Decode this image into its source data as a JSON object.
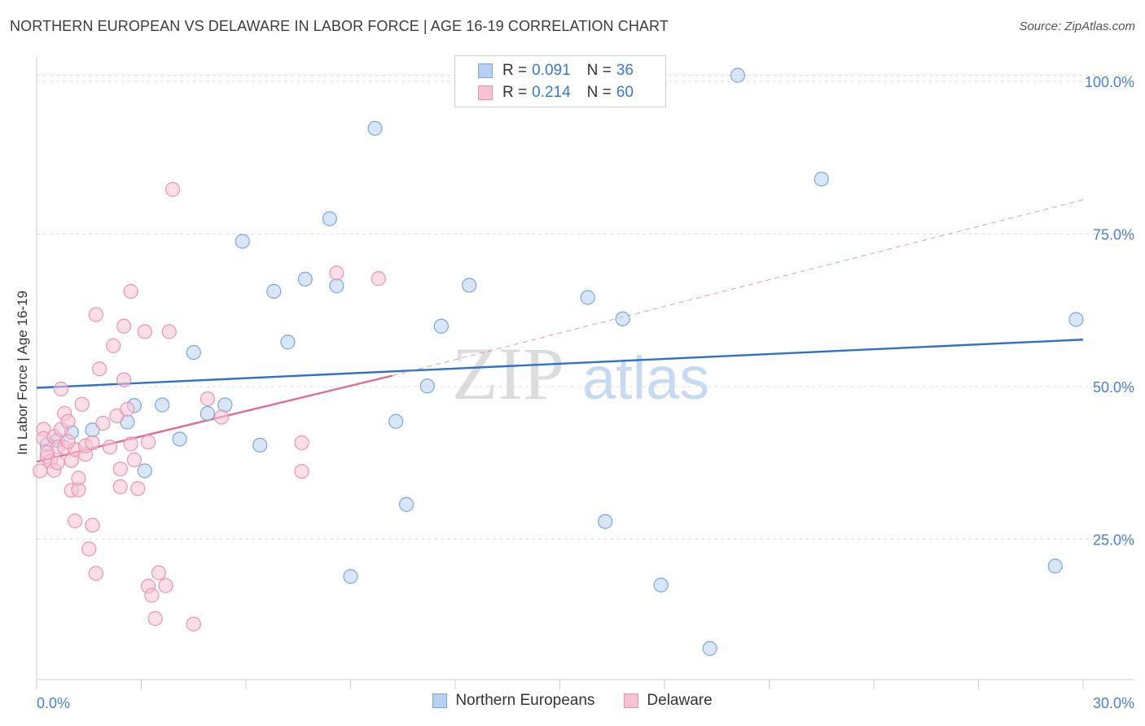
{
  "title": "NORTHERN EUROPEAN VS DELAWARE IN LABOR FORCE | AGE 16-19 CORRELATION CHART",
  "source": "Source: ZipAtlas.com",
  "watermark": {
    "zip": "ZIP",
    "atlas": "atlas"
  },
  "legend": {
    "rows": [
      {
        "r_label": "R =",
        "r_value": "0.091",
        "n_label": "N =",
        "n_value": "36"
      },
      {
        "r_label": "R =",
        "r_value": "0.214",
        "n_label": "N =",
        "n_value": "60"
      }
    ]
  },
  "bottom_legend": [
    {
      "label": "Northern Europeans"
    },
    {
      "label": "Delaware"
    }
  ],
  "colors": {
    "blue_fill": "#b8d1f3",
    "blue_stroke": "#7aa5e0",
    "blue_line": "#2f6fd0",
    "pink_fill": "#f7c3d3",
    "pink_stroke": "#ea93b0",
    "pink_line": "#e06a96",
    "grid": "#dddddd",
    "tick_text": "#4a7fd0"
  },
  "chart_data": {
    "type": "scatter",
    "title": "NORTHERN EUROPEAN VS DELAWARE IN LABOR FORCE | AGE 16-19 CORRELATION CHART",
    "xlabel": "",
    "ylabel": "In Labor Force | Age 16-19",
    "xlim": [
      0,
      30
    ],
    "ylim": [
      2,
      104
    ],
    "x_tick_labels": [
      "0.0%",
      "30.0%"
    ],
    "y_ticks": [
      25,
      50,
      75,
      100
    ],
    "y_tick_labels": [
      "25.0%",
      "50.0%",
      "75.0%",
      "100.0%"
    ],
    "grid": true,
    "series": [
      {
        "name": "Northern Europeans",
        "r": 0.091,
        "n": 36,
        "points": [
          [
            0.6,
            41.2
          ],
          [
            1.0,
            42.5
          ],
          [
            1.6,
            42.9
          ],
          [
            2.8,
            46.9
          ],
          [
            2.6,
            44.2
          ],
          [
            3.1,
            36.2
          ],
          [
            3.6,
            47.0
          ],
          [
            4.1,
            41.4
          ],
          [
            4.5,
            55.6
          ],
          [
            4.9,
            45.6
          ],
          [
            5.4,
            47.0
          ],
          [
            5.9,
            73.8
          ],
          [
            6.4,
            40.4
          ],
          [
            6.8,
            65.6
          ],
          [
            7.2,
            57.3
          ],
          [
            7.7,
            67.6
          ],
          [
            8.4,
            77.5
          ],
          [
            8.6,
            66.5
          ],
          [
            9.0,
            18.9
          ],
          [
            9.7,
            92.3
          ],
          [
            10.3,
            44.3
          ],
          [
            10.6,
            30.7
          ],
          [
            11.2,
            50.1
          ],
          [
            11.6,
            59.9
          ],
          [
            12.4,
            66.6
          ],
          [
            14.1,
            101.0
          ],
          [
            15.8,
            64.6
          ],
          [
            16.3,
            27.9
          ],
          [
            16.8,
            61.1
          ],
          [
            17.9,
            17.5
          ],
          [
            19.3,
            7.1
          ],
          [
            20.1,
            101.0
          ],
          [
            22.5,
            84.0
          ],
          [
            29.2,
            20.6
          ],
          [
            29.8,
            61.0
          ],
          [
            0.3,
            40.5
          ]
        ]
      },
      {
        "name": "Delaware",
        "r": 0.214,
        "n": 60,
        "points": [
          [
            0.1,
            36.2
          ],
          [
            0.2,
            43.0
          ],
          [
            0.2,
            41.5
          ],
          [
            0.3,
            38.5
          ],
          [
            0.4,
            37.8
          ],
          [
            0.5,
            36.3
          ],
          [
            0.5,
            41.8
          ],
          [
            0.6,
            37.5
          ],
          [
            0.6,
            40.1
          ],
          [
            0.7,
            43.0
          ],
          [
            0.7,
            49.6
          ],
          [
            0.8,
            45.6
          ],
          [
            0.8,
            40.0
          ],
          [
            0.9,
            44.3
          ],
          [
            1.0,
            33.0
          ],
          [
            1.0,
            37.9
          ],
          [
            1.1,
            39.7
          ],
          [
            1.1,
            28.0
          ],
          [
            1.2,
            33.1
          ],
          [
            1.2,
            35.0
          ],
          [
            1.3,
            47.1
          ],
          [
            1.4,
            38.9
          ],
          [
            1.4,
            40.3
          ],
          [
            1.5,
            23.4
          ],
          [
            1.6,
            27.3
          ],
          [
            1.6,
            40.8
          ],
          [
            1.7,
            19.4
          ],
          [
            1.7,
            61.8
          ],
          [
            1.8,
            52.9
          ],
          [
            1.9,
            44.0
          ],
          [
            2.1,
            40.1
          ],
          [
            2.2,
            56.7
          ],
          [
            2.3,
            45.2
          ],
          [
            2.4,
            36.5
          ],
          [
            2.4,
            33.6
          ],
          [
            2.5,
            51.1
          ],
          [
            2.5,
            59.9
          ],
          [
            2.6,
            46.3
          ],
          [
            2.7,
            40.6
          ],
          [
            2.7,
            65.6
          ],
          [
            2.8,
            38.0
          ],
          [
            2.9,
            33.3
          ],
          [
            3.1,
            59.0
          ],
          [
            3.2,
            17.3
          ],
          [
            3.2,
            40.9
          ],
          [
            3.3,
            15.8
          ],
          [
            3.4,
            12.0
          ],
          [
            3.5,
            19.5
          ],
          [
            3.7,
            17.4
          ],
          [
            3.8,
            59.0
          ],
          [
            3.9,
            82.3
          ],
          [
            4.5,
            11.1
          ],
          [
            4.9,
            48.0
          ],
          [
            5.3,
            45.0
          ],
          [
            7.6,
            36.1
          ],
          [
            7.6,
            40.8
          ],
          [
            8.6,
            68.6
          ],
          [
            9.8,
            67.7
          ],
          [
            0.3,
            39.2
          ],
          [
            0.9,
            41.0
          ]
        ]
      }
    ],
    "trend_lines": [
      {
        "series": "Northern Europeans",
        "x": [
          0,
          30
        ],
        "y": [
          49.8,
          57.7
        ],
        "style": "solid"
      },
      {
        "series": "Delaware",
        "x": [
          0,
          10.2
        ],
        "y": [
          37.7,
          51.8
        ],
        "style": "solid"
      },
      {
        "series": "Delaware",
        "x": [
          10.2,
          30
        ],
        "y": [
          51.8,
          80.6
        ],
        "style": "dashed"
      }
    ]
  }
}
